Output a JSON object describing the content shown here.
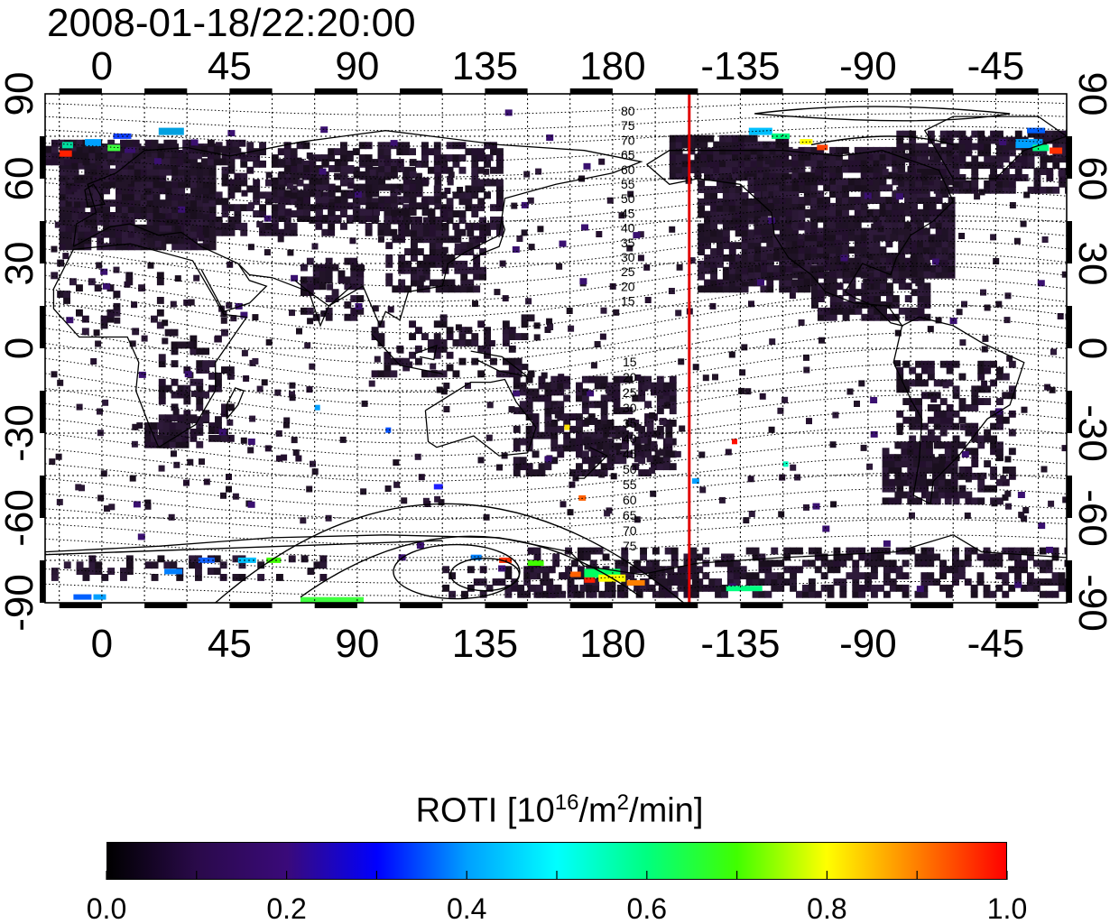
{
  "title": "2008-01-18/22:20:00",
  "map": {
    "lon_ticks_top": [
      "0",
      "45",
      "90",
      "135",
      "180",
      "-135",
      "-90",
      "-45"
    ],
    "lon_ticks_bottom": [
      "0",
      "45",
      "90",
      "135",
      "180",
      "-135",
      "-90",
      "-45"
    ],
    "lat_ticks_left": [
      "90",
      "60",
      "30",
      "0",
      "-30",
      "-60",
      "-90"
    ],
    "lat_ticks_right": [
      "90",
      "60",
      "30",
      "0",
      "-30",
      "-60",
      "-90"
    ],
    "contour_labels_north": [
      "80",
      "75",
      "70",
      "65",
      "60",
      "55",
      "50",
      "45",
      "40",
      "35",
      "30",
      "25",
      "20",
      "15"
    ],
    "contour_labels_south": [
      "15",
      "20",
      "25",
      "30",
      "35",
      "40",
      "45",
      "50",
      "55",
      "60",
      "65",
      "70",
      "75"
    ],
    "terminator_lon": -153,
    "colors": {
      "terminator": "#e00000",
      "frame": "#000000",
      "grid": "#000000"
    }
  },
  "colorbar": {
    "label_main": "ROTI  [10",
    "label_exp1": "16",
    "label_mid": "/m",
    "label_exp2": "2",
    "label_end": "/min]",
    "ticks": [
      "0.0",
      "0.2",
      "0.4",
      "0.6",
      "0.8",
      "1.0"
    ],
    "colors": [
      "#000000",
      "#2a0a4a",
      "#3a0a7a",
      "#0000ff",
      "#00a0ff",
      "#00ffff",
      "#00ff80",
      "#40ff00",
      "#ffff00",
      "#ff8000",
      "#ff0000"
    ]
  }
}
